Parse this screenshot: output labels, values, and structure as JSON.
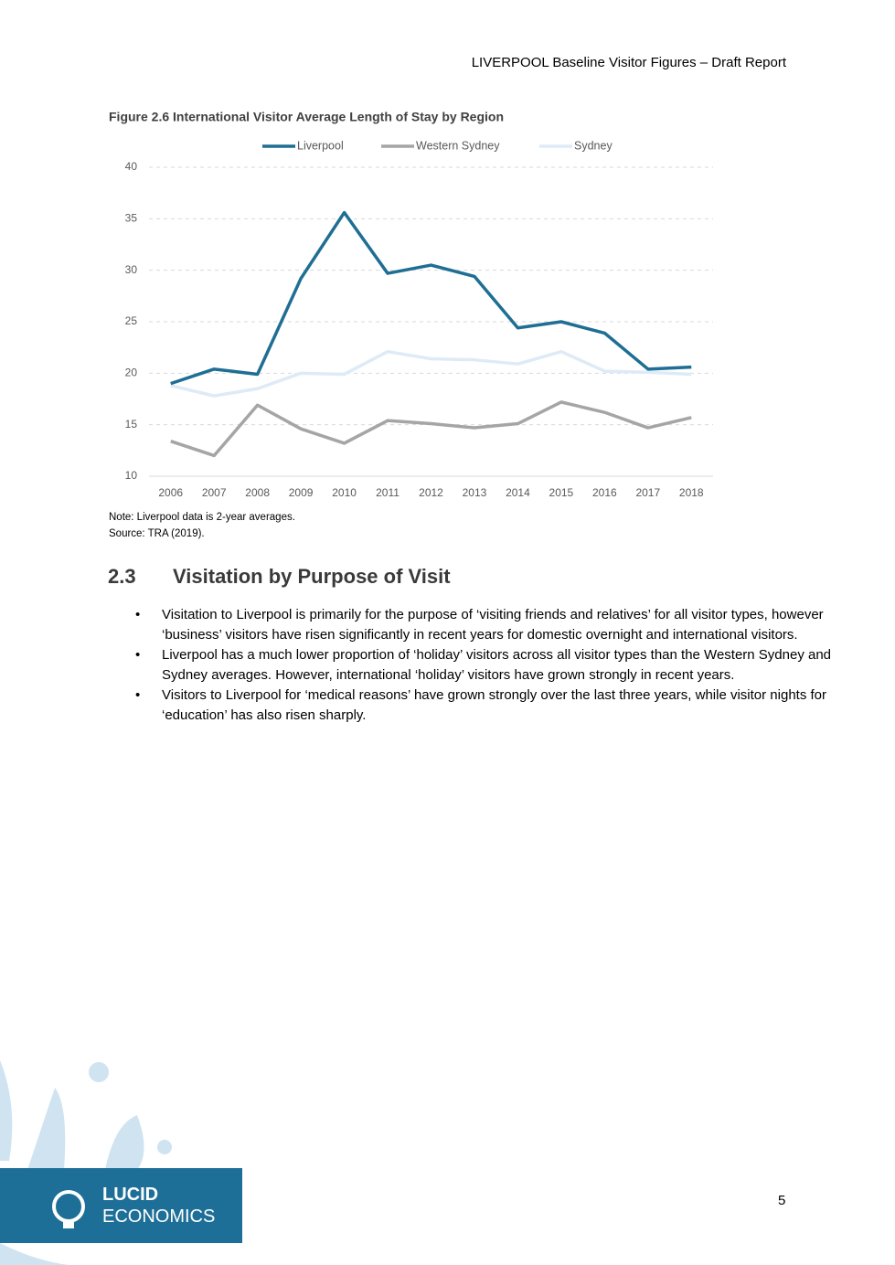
{
  "header": "LIVERPOOL Baseline Visitor Figures – Draft Report",
  "chart_data": {
    "type": "line",
    "title": "Figure 2.6 International Visitor Average Length of Stay by Region",
    "categories": [
      "2006",
      "2007",
      "2008",
      "2009",
      "2010",
      "2011",
      "2012",
      "2013",
      "2014",
      "2015",
      "2016",
      "2017",
      "2018"
    ],
    "series": [
      {
        "name": "Liverpool",
        "color": "#1f6e93",
        "values": [
          19.0,
          20.4,
          19.9,
          29.2,
          35.6,
          29.7,
          30.5,
          29.4,
          24.4,
          25.0,
          23.9,
          20.4,
          20.6
        ]
      },
      {
        "name": "Western Sydney",
        "color": "#a5a5a5",
        "values": [
          13.4,
          12.0,
          16.9,
          14.6,
          13.2,
          15.4,
          15.1,
          14.7,
          15.1,
          17.2,
          16.2,
          14.7,
          15.7
        ]
      },
      {
        "name": "Sydney",
        "color": "#deebf7",
        "values": [
          18.8,
          17.8,
          18.5,
          20.0,
          19.9,
          22.1,
          21.4,
          21.3,
          20.9,
          22.1,
          20.2,
          20.1,
          19.9
        ]
      }
    ],
    "ylim": [
      10,
      40
    ],
    "yticks": [
      10,
      15,
      20,
      25,
      30,
      35,
      40
    ],
    "grid": true,
    "legend": "top"
  },
  "notes": [
    "Note: Liverpool data is 2-year averages.",
    "Source: TRA (2019)."
  ],
  "section": {
    "number": "2.3",
    "title": "Visitation by Purpose of Visit"
  },
  "bullets": [
    "Visitation to Liverpool is primarily for the purpose of ‘visiting friends and relatives’ for all visitor types, however ‘business’ visitors have risen significantly in recent years for domestic overnight and international visitors.",
    "Liverpool has a much lower proportion of ‘holiday’ visitors across all visitor types than the Western Sydney and Sydney averages. However, international ‘holiday’ visitors have grown strongly in recent years.",
    "Visitors to Liverpool for ‘medical reasons’ have grown strongly over the last three years, while visitor nights for ‘education’ has also risen sharply."
  ],
  "logo": [
    "LUCID",
    "ECONOMICS"
  ],
  "page_number": 5
}
